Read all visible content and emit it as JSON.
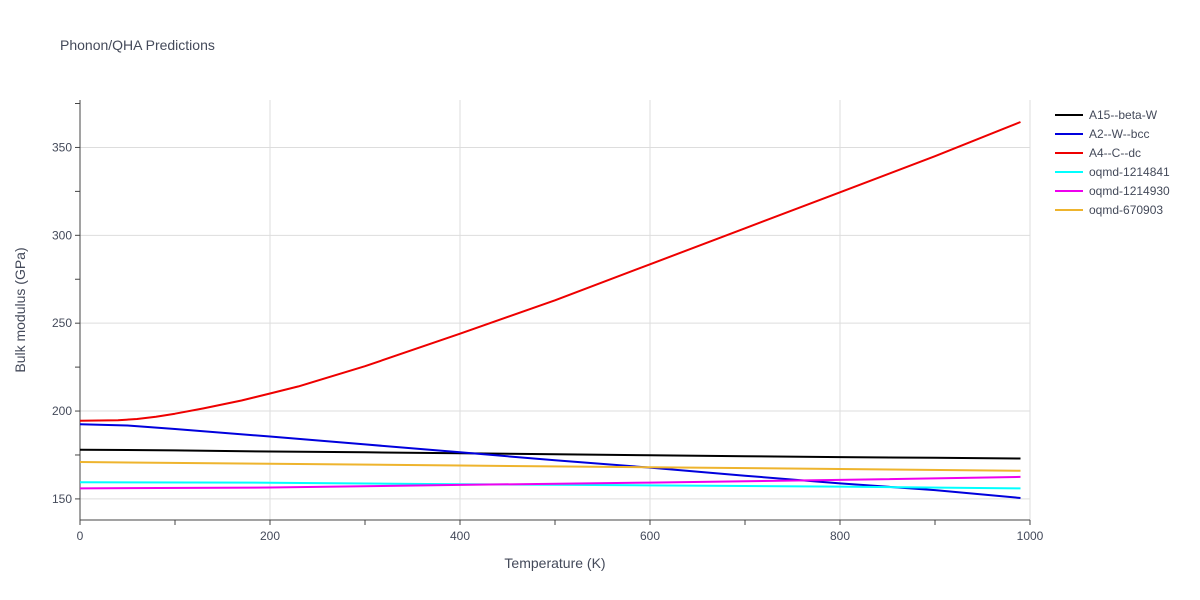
{
  "chart_data": {
    "type": "line",
    "title": "Phonon/QHA Predictions",
    "xlabel": "Temperature (K)",
    "ylabel": "Bulk modulus (GPa)",
    "xlim": [
      0,
      1000
    ],
    "ylim": [
      138,
      377
    ],
    "x_ticks": [
      0,
      200,
      400,
      600,
      800,
      1000
    ],
    "y_ticks": [
      150,
      200,
      250,
      300,
      350
    ],
    "grid": true,
    "legend_position": "right",
    "series": [
      {
        "name": "A15--beta-W",
        "color": "#000000",
        "x": [
          0,
          100,
          200,
          300,
          400,
          500,
          600,
          700,
          800,
          900,
          990
        ],
        "y": [
          178.0,
          177.6,
          177.0,
          176.5,
          176.0,
          175.4,
          174.8,
          174.3,
          173.8,
          173.4,
          173.0
        ]
      },
      {
        "name": "A2--W--bcc",
        "color": "#0000dd",
        "x": [
          0,
          50,
          100,
          200,
          300,
          400,
          500,
          600,
          700,
          800,
          900,
          990
        ],
        "y": [
          192.5,
          191.8,
          189.8,
          185.5,
          181.0,
          176.5,
          172.0,
          167.8,
          163.2,
          158.8,
          155.0,
          150.5
        ]
      },
      {
        "name": "A4--C--dc",
        "color": "#ee0000",
        "x": [
          0,
          20,
          40,
          60,
          80,
          100,
          130,
          170,
          200,
          230,
          300,
          400,
          500,
          600,
          700,
          800,
          900,
          990
        ],
        "y": [
          194.5,
          194.6,
          194.8,
          195.5,
          196.8,
          198.5,
          201.5,
          206.0,
          210.0,
          214.0,
          225.5,
          244.0,
          263.0,
          283.5,
          304.0,
          324.5,
          345.0,
          364.5
        ]
      },
      {
        "name": "oqmd-1214841",
        "color": "#00ffff",
        "x": [
          0,
          200,
          400,
          600,
          800,
          990
        ],
        "y": [
          159.5,
          159.2,
          158.4,
          157.7,
          157.0,
          156.0
        ]
      },
      {
        "name": "oqmd-1214930",
        "color": "#ee00ee",
        "x": [
          0,
          200,
          400,
          600,
          800,
          990
        ],
        "y": [
          156.0,
          156.5,
          158.0,
          159.3,
          160.8,
          162.5
        ]
      },
      {
        "name": "oqmd-670903",
        "color": "#eeb42d",
        "x": [
          0,
          200,
          400,
          600,
          800,
          990
        ],
        "y": [
          171.0,
          170.0,
          169.0,
          168.0,
          167.0,
          166.0
        ]
      }
    ]
  }
}
